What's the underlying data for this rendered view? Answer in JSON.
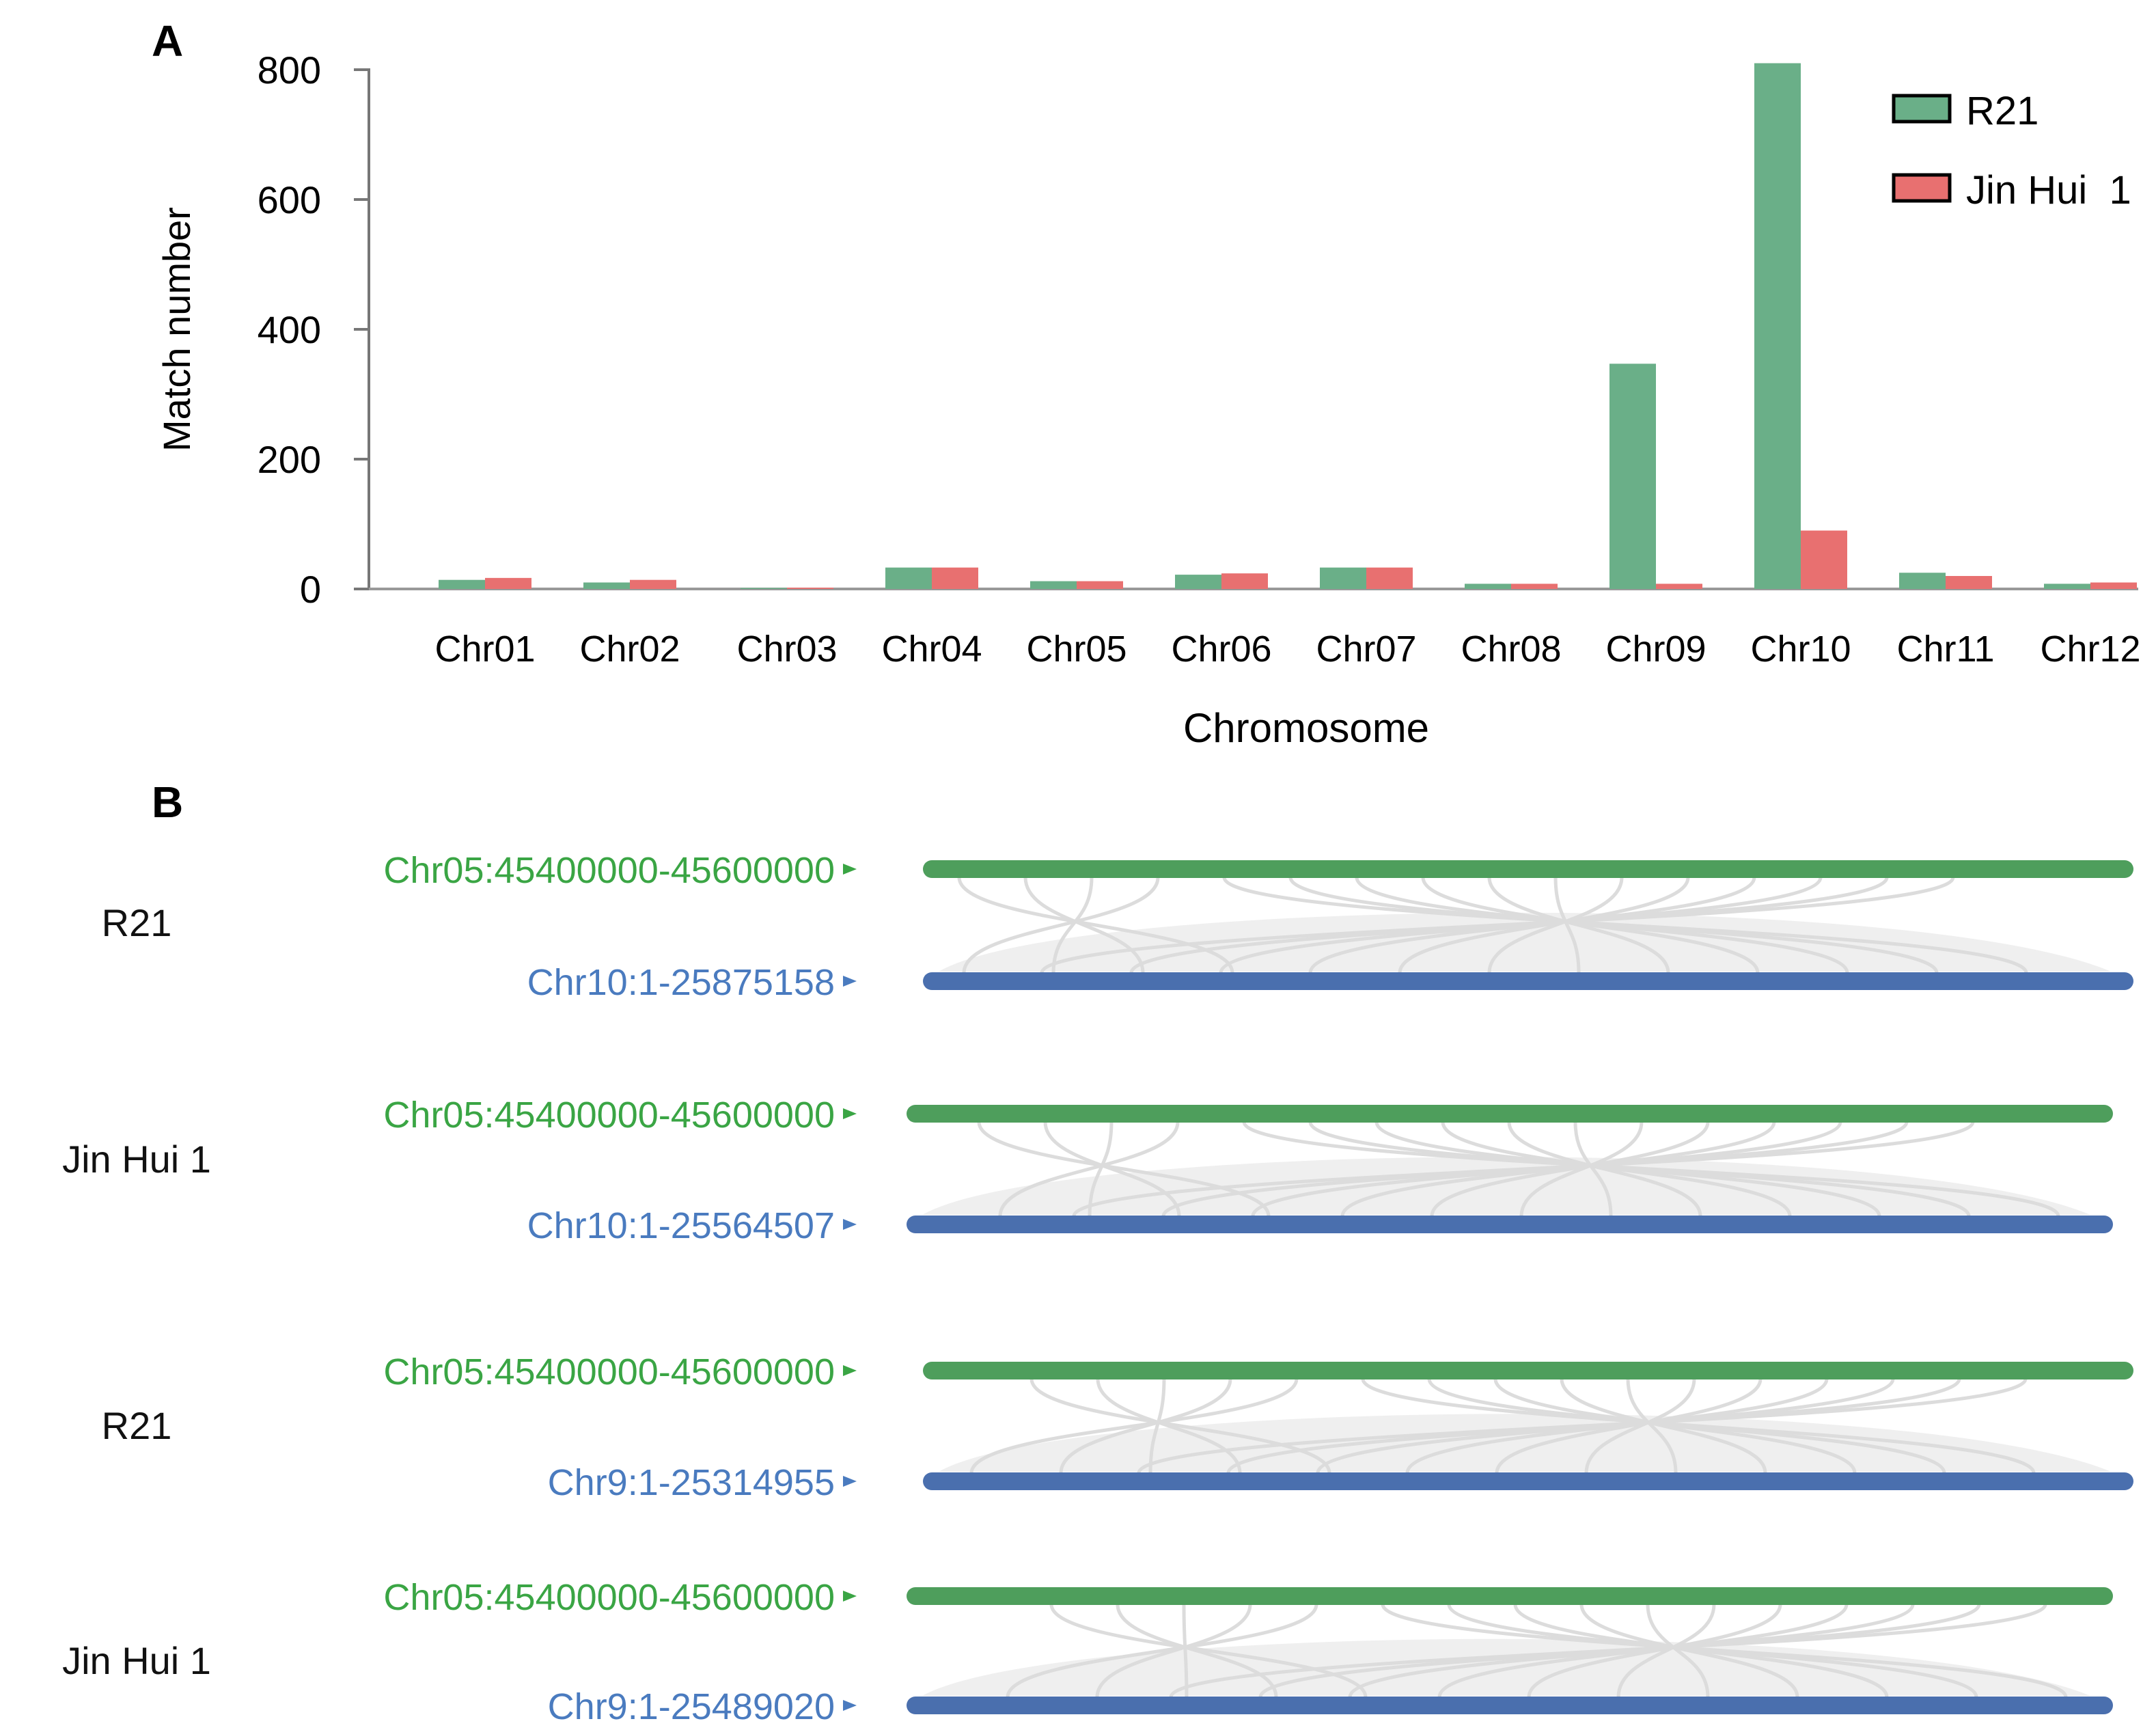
{
  "panel_a": {
    "label": "A"
  },
  "panel_b": {
    "label": "B"
  },
  "colors": {
    "r21_bar": "#6aaf88",
    "jinhui_bar": "#e87070",
    "track_top": "#4e9e5c",
    "track_bottom": "#4a6fae",
    "label_top": "#3aa544",
    "label_bottom": "#4a7bbf",
    "link": "#dcdcdc"
  },
  "chart_data": [
    {
      "type": "bar",
      "title": "",
      "xlabel": "Chromosome",
      "ylabel": "Match number",
      "ylim": [
        0,
        800
      ],
      "yticks": [
        "0",
        "200",
        "400",
        "600",
        "800"
      ],
      "categories": [
        "Chr01",
        "Chr02",
        "Chr03",
        "Chr04",
        "Chr05",
        "Chr06",
        "Chr07",
        "Chr08",
        "Chr09",
        "Chr10",
        "Chr11",
        "Chr12"
      ],
      "series": [
        {
          "name": "R21",
          "values": [
            14,
            10,
            0,
            33,
            12,
            22,
            33,
            8,
            347,
            810,
            25,
            8
          ]
        },
        {
          "name": "Jin Hui  1",
          "values": [
            17,
            14,
            2,
            33,
            12,
            24,
            33,
            8,
            8,
            90,
            20,
            10
          ]
        }
      ],
      "legend": "top-right",
      "grid": false
    },
    {
      "type": "synteny",
      "tracks": [
        {
          "group": "R21",
          "top": "Chr05:45400000-45600000",
          "bottom": "Chr10:1-25875158"
        },
        {
          "group": "Jin Hui  1",
          "top": "Chr05:45400000-45600000",
          "bottom": "Chr10:1-25564507"
        },
        {
          "group": "R21",
          "top": "Chr05:45400000-45600000",
          "bottom": "Chr9:1-25314955"
        },
        {
          "group": "Jin Hui  1",
          "top": "Chr05:45400000-45600000",
          "bottom": "Chr9:1-25489020"
        }
      ]
    }
  ]
}
